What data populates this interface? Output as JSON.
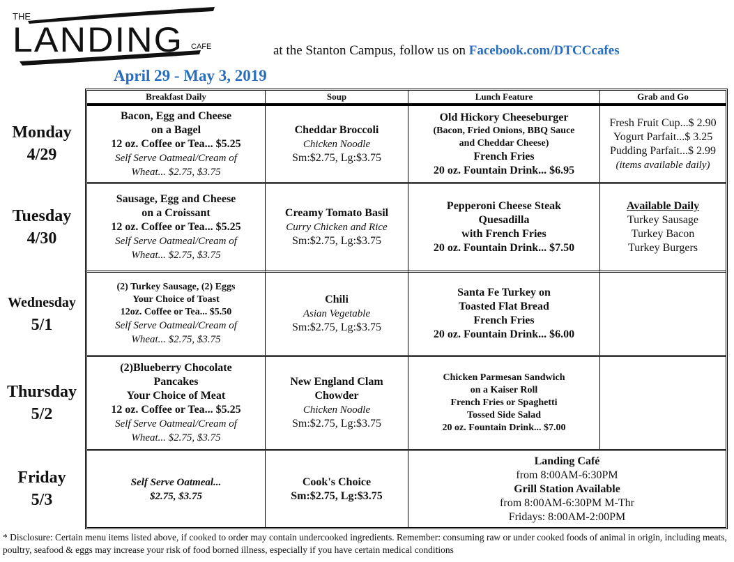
{
  "header": {
    "logo": {
      "the": "THE",
      "main": "LANDING",
      "sub": "CAFE"
    },
    "tagline": "at the Stanton Campus, follow us on ",
    "facebook_link": "Facebook.com/DTCCcafes",
    "date_range": "April 29 - May 3, 2019",
    "accent_color": "#2a6ebb"
  },
  "columns": [
    "Breakfast Daily",
    "Soup",
    "Lunch Feature",
    "Grab and Go"
  ],
  "days": [
    {
      "name": "Monday",
      "date": "4/29"
    },
    {
      "name": "Tuesday",
      "date": "4/30"
    },
    {
      "name": "Wednesday",
      "date": "5/1"
    },
    {
      "name": "Thursday",
      "date": "5/2"
    },
    {
      "name": "Friday",
      "date": "5/3"
    }
  ],
  "rows": [
    [
      [
        {
          "t": "Bacon, Egg and Cheese",
          "s": "bold"
        },
        {
          "t": "on a Bagel",
          "s": "bold"
        },
        {
          "t": "12 oz. Coffee or Tea... $5.25",
          "s": "bold"
        },
        {
          "t": "Self Serve Oatmeal/Cream of",
          "s": "italic"
        },
        {
          "t": "Wheat...  $2.75, $3.75",
          "s": "italic"
        }
      ],
      [
        {
          "t": "Cheddar Broccoli",
          "s": "bold"
        },
        {
          "t": "Chicken Noodle",
          "s": "italic"
        },
        {
          "t": "Sm:$2.75, Lg:$3.75",
          "s": "normal"
        }
      ],
      [
        {
          "t": "Old Hickory Cheeseburger",
          "s": "bold"
        },
        {
          "t": "(Bacon, Fried Onions, BBQ Sauce",
          "s": "small-bold"
        },
        {
          "t": "and Cheddar Cheese)",
          "s": "small-bold"
        },
        {
          "t": "French Fries",
          "s": "bold"
        },
        {
          "t": "20 oz. Fountain Drink... $6.95",
          "s": "bold"
        }
      ],
      [
        {
          "t": "Fresh Fruit Cup...$ 2.90",
          "s": "normal"
        },
        {
          "t": "Yogurt Parfait...$ 3.25",
          "s": "normal"
        },
        {
          "t": "Pudding Parfait...$ 2.99",
          "s": "normal"
        },
        {
          "t": "(items available daily)",
          "s": "italic"
        }
      ]
    ],
    [
      [
        {
          "t": "Sausage, Egg and Cheese",
          "s": "bold"
        },
        {
          "t": "on a Croissant",
          "s": "bold"
        },
        {
          "t": "12 oz. Coffee or Tea... $5.25",
          "s": "bold"
        },
        {
          "t": "Self Serve Oatmeal/Cream of",
          "s": "italic"
        },
        {
          "t": "Wheat...  $2.75, $3.75",
          "s": "italic"
        }
      ],
      [
        {
          "t": "Creamy Tomato Basil",
          "s": "bold"
        },
        {
          "t": "Curry Chicken and Rice",
          "s": "italic"
        },
        {
          "t": "Sm:$2.75, Lg:$3.75",
          "s": "normal"
        }
      ],
      [
        {
          "t": "Pepperoni Cheese Steak",
          "s": "bold"
        },
        {
          "t": "Quesadilla",
          "s": "bold"
        },
        {
          "t": "with French Fries",
          "s": "bold"
        },
        {
          "t": "20 oz. Fountain Drink... $7.50",
          "s": "bold"
        }
      ],
      [
        {
          "t": "Available Daily",
          "s": "underline-bold"
        },
        {
          "t": "Turkey Sausage",
          "s": "normal"
        },
        {
          "t": "Turkey Bacon",
          "s": "normal"
        },
        {
          "t": "Turkey Burgers",
          "s": "normal"
        }
      ]
    ],
    [
      [
        {
          "t": "(2) Turkey Sausage, (2) Eggs",
          "s": "small-bold"
        },
        {
          "t": "Your Choice of Toast",
          "s": "small-bold"
        },
        {
          "t": "12oz. Coffee or Tea... $5.50",
          "s": "small-bold"
        },
        {
          "t": "Self Serve Oatmeal/Cream of",
          "s": "italic"
        },
        {
          "t": "Wheat... $2.75, $3.75",
          "s": "italic"
        }
      ],
      [
        {
          "t": "Chili",
          "s": "bold"
        },
        {
          "t": "Asian Vegetable",
          "s": "italic"
        },
        {
          "t": "Sm:$2.75, Lg:$3.75",
          "s": "normal"
        }
      ],
      [
        {
          "t": "Santa Fe Turkey on",
          "s": "bold"
        },
        {
          "t": "Toasted Flat Bread",
          "s": "bold"
        },
        {
          "t": "French Fries",
          "s": "bold"
        },
        {
          "t": "20 oz. Fountain Drink... $6.00",
          "s": "bold"
        }
      ],
      []
    ],
    [
      [
        {
          "t": "(2)Blueberry Chocolate",
          "s": "bold"
        },
        {
          "t": "Pancakes",
          "s": "bold"
        },
        {
          "t": "Your Choice of Meat",
          "s": "bold"
        },
        {
          "t": "12 oz. Coffee or Tea... $5.25",
          "s": "bold"
        },
        {
          "t": "Self Serve Oatmeal/Cream of",
          "s": "italic"
        },
        {
          "t": "Wheat... $2.75, $3.75",
          "s": "italic"
        }
      ],
      [
        {
          "t": "New England Clam",
          "s": "bold"
        },
        {
          "t": "Chowder",
          "s": "bold"
        },
        {
          "t": "Chicken Noodle",
          "s": "italic"
        },
        {
          "t": "Sm:$2.75, Lg:$3.75",
          "s": "normal"
        }
      ],
      [
        {
          "t": "Chicken Parmesan Sandwich",
          "s": "small-bold"
        },
        {
          "t": "on a Kaiser Roll",
          "s": "small-bold"
        },
        {
          "t": "French Fries or Spaghetti",
          "s": "small-bold"
        },
        {
          "t": "Tossed Side Salad",
          "s": "small-bold"
        },
        {
          "t": "20 oz. Fountain Drink... $7.00",
          "s": "small-bold"
        }
      ],
      []
    ],
    [
      [
        {
          "t": "Self Serve Oatmeal...",
          "s": "bold-italic"
        },
        {
          "t": "$2.75, $3.75",
          "s": "bold-italic"
        }
      ],
      [
        {
          "t": "Cook's Choice",
          "s": "bold"
        },
        {
          "t": "Sm:$2.75, Lg:$3.75",
          "s": "bold"
        }
      ],
      [
        {
          "t": "Landing Café",
          "s": "bold"
        },
        {
          "t": "from 8:00AM-6:30PM",
          "s": "normal"
        },
        {
          "t": "Grill Station Available",
          "s": "bold"
        },
        {
          "t": "from 8:00AM-6:30PM M-Thr",
          "s": "normal"
        },
        {
          "t": "Fridays: 8:00AM-2:00PM",
          "s": "normal"
        }
      ]
    ]
  ],
  "footer": "* Disclosure: Certain menu items listed above, if cooked to order may contain undercooked ingredients. Remember: consuming raw or under cooked foods of animal in origin, including meats, poultry, seafood & eggs may increase your risk of food borned illness, especially if you have certain medical conditions"
}
